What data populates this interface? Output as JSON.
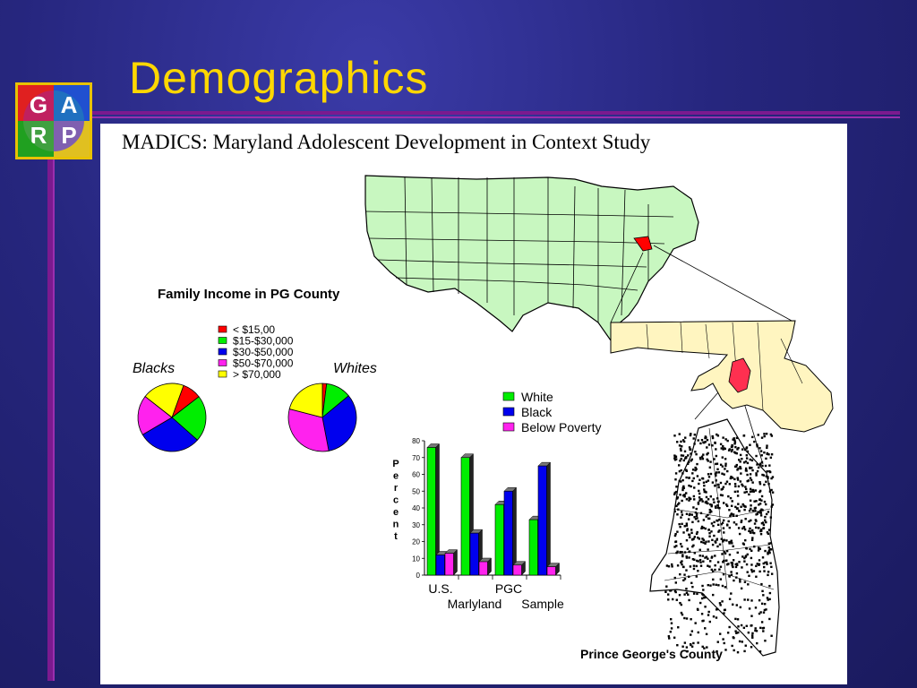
{
  "slide": {
    "title": "Demographics",
    "subtitle": "MADICS: Maryland Adolescent Development in Context Study",
    "logo_letters": [
      "G",
      "A",
      "R",
      "P"
    ]
  },
  "pie_section": {
    "title": "Family Income in PG County",
    "label_left": "Blacks",
    "label_right": "Whites"
  },
  "map_labels": {
    "county": "Prince George's County"
  },
  "colors": {
    "background": "#26267e",
    "title": "#ffd700",
    "accent_line": "#7b1a8f",
    "red": "#ff0000",
    "green": "#00ee00",
    "blue": "#0000ee",
    "magenta": "#ff22ee",
    "yellow": "#ffff00",
    "map_fill": "#c8f7c0",
    "maryland_fill": "#fff5c0"
  },
  "chart_data": [
    {
      "type": "pie",
      "title": "Family Income in PG County",
      "legend": [
        "< $15,00",
        "$15-$30,000",
        "$30-$50,000",
        "$50-$70,000",
        "> $70,000"
      ],
      "legend_colors": [
        "#ff0000",
        "#00ee00",
        "#0000ee",
        "#ff22ee",
        "#ffff00"
      ],
      "series": [
        {
          "name": "Blacks",
          "values": [
            9,
            22,
            30,
            19,
            20
          ]
        },
        {
          "name": "Whites",
          "values": [
            2,
            12,
            33,
            32,
            21
          ]
        }
      ]
    },
    {
      "type": "bar",
      "categories": [
        "U.S.",
        "Marlyland",
        "PGC",
        "Sample"
      ],
      "series": [
        {
          "name": "White",
          "color": "#00ee00",
          "values": [
            76,
            70,
            42,
            33
          ]
        },
        {
          "name": "Black",
          "color": "#0000ee",
          "values": [
            12,
            25,
            50,
            65
          ]
        },
        {
          "name": "Below Poverty",
          "color": "#ff22ee",
          "values": [
            13,
            8,
            6,
            5
          ]
        }
      ],
      "ylabel": "Percent",
      "ylim": [
        0,
        80
      ],
      "yticks": [
        0,
        10,
        20,
        30,
        40,
        50,
        60,
        70,
        80
      ],
      "legend_placement": "top"
    }
  ]
}
